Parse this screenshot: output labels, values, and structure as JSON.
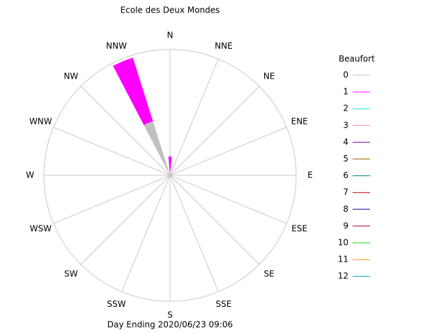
{
  "chart_data": {
    "type": "windrose",
    "title": "Ecole des Deux Mondes",
    "footer": "Day Ending 2020/06/23 09:06",
    "legend_title": "Beaufort",
    "rlim": [
      0,
      100
    ],
    "categories": [
      "N",
      "NNE",
      "NE",
      "ENE",
      "E",
      "ESE",
      "SE",
      "SSE",
      "S",
      "SSW",
      "SW",
      "WSW",
      "W",
      "WNW",
      "NW",
      "NNW"
    ],
    "series": [
      {
        "name": "0",
        "color": "#c0c0c0",
        "values": [
          3,
          0,
          0,
          0,
          0,
          0,
          0,
          0,
          0,
          0,
          0,
          0,
          0,
          0,
          0,
          45
        ]
      },
      {
        "name": "1",
        "color": "#ff00ff",
        "values": [
          12,
          0,
          0,
          0,
          0,
          0,
          0,
          0,
          0,
          0,
          0,
          0,
          0,
          0,
          0,
          53
        ]
      },
      {
        "name": "2",
        "color": "#00e0e0",
        "values": [
          0,
          0,
          0,
          0,
          0,
          0,
          0,
          0,
          0,
          0,
          0,
          0,
          0,
          0,
          0,
          0
        ]
      },
      {
        "name": "3",
        "color": "#ff80c0",
        "values": [
          0,
          0,
          0,
          0,
          0,
          0,
          0,
          0,
          0,
          0,
          0,
          0,
          0,
          0,
          0,
          0
        ]
      },
      {
        "name": "4",
        "color": "#8000a0",
        "values": [
          0,
          0,
          0,
          0,
          0,
          0,
          0,
          0,
          0,
          0,
          0,
          0,
          0,
          0,
          0,
          0
        ]
      },
      {
        "name": "5",
        "color": "#a06000",
        "values": [
          0,
          0,
          0,
          0,
          0,
          0,
          0,
          0,
          0,
          0,
          0,
          0,
          0,
          0,
          0,
          0
        ]
      },
      {
        "name": "6",
        "color": "#008080",
        "values": [
          0,
          0,
          0,
          0,
          0,
          0,
          0,
          0,
          0,
          0,
          0,
          0,
          0,
          0,
          0,
          0
        ]
      },
      {
        "name": "7",
        "color": "#c00000",
        "values": [
          0,
          0,
          0,
          0,
          0,
          0,
          0,
          0,
          0,
          0,
          0,
          0,
          0,
          0,
          0,
          0
        ]
      },
      {
        "name": "8",
        "color": "#000080",
        "values": [
          0,
          0,
          0,
          0,
          0,
          0,
          0,
          0,
          0,
          0,
          0,
          0,
          0,
          0,
          0,
          0
        ]
      },
      {
        "name": "9",
        "color": "#a00020",
        "values": [
          0,
          0,
          0,
          0,
          0,
          0,
          0,
          0,
          0,
          0,
          0,
          0,
          0,
          0,
          0,
          0
        ]
      },
      {
        "name": "10",
        "color": "#00e000",
        "values": [
          0,
          0,
          0,
          0,
          0,
          0,
          0,
          0,
          0,
          0,
          0,
          0,
          0,
          0,
          0,
          0
        ]
      },
      {
        "name": "11",
        "color": "#e09000",
        "values": [
          0,
          0,
          0,
          0,
          0,
          0,
          0,
          0,
          0,
          0,
          0,
          0,
          0,
          0,
          0,
          0
        ]
      },
      {
        "name": "12",
        "color": "#00a0a0",
        "values": [
          0,
          0,
          0,
          0,
          0,
          0,
          0,
          0,
          0,
          0,
          0,
          0,
          0,
          0,
          0,
          0
        ]
      }
    ]
  }
}
